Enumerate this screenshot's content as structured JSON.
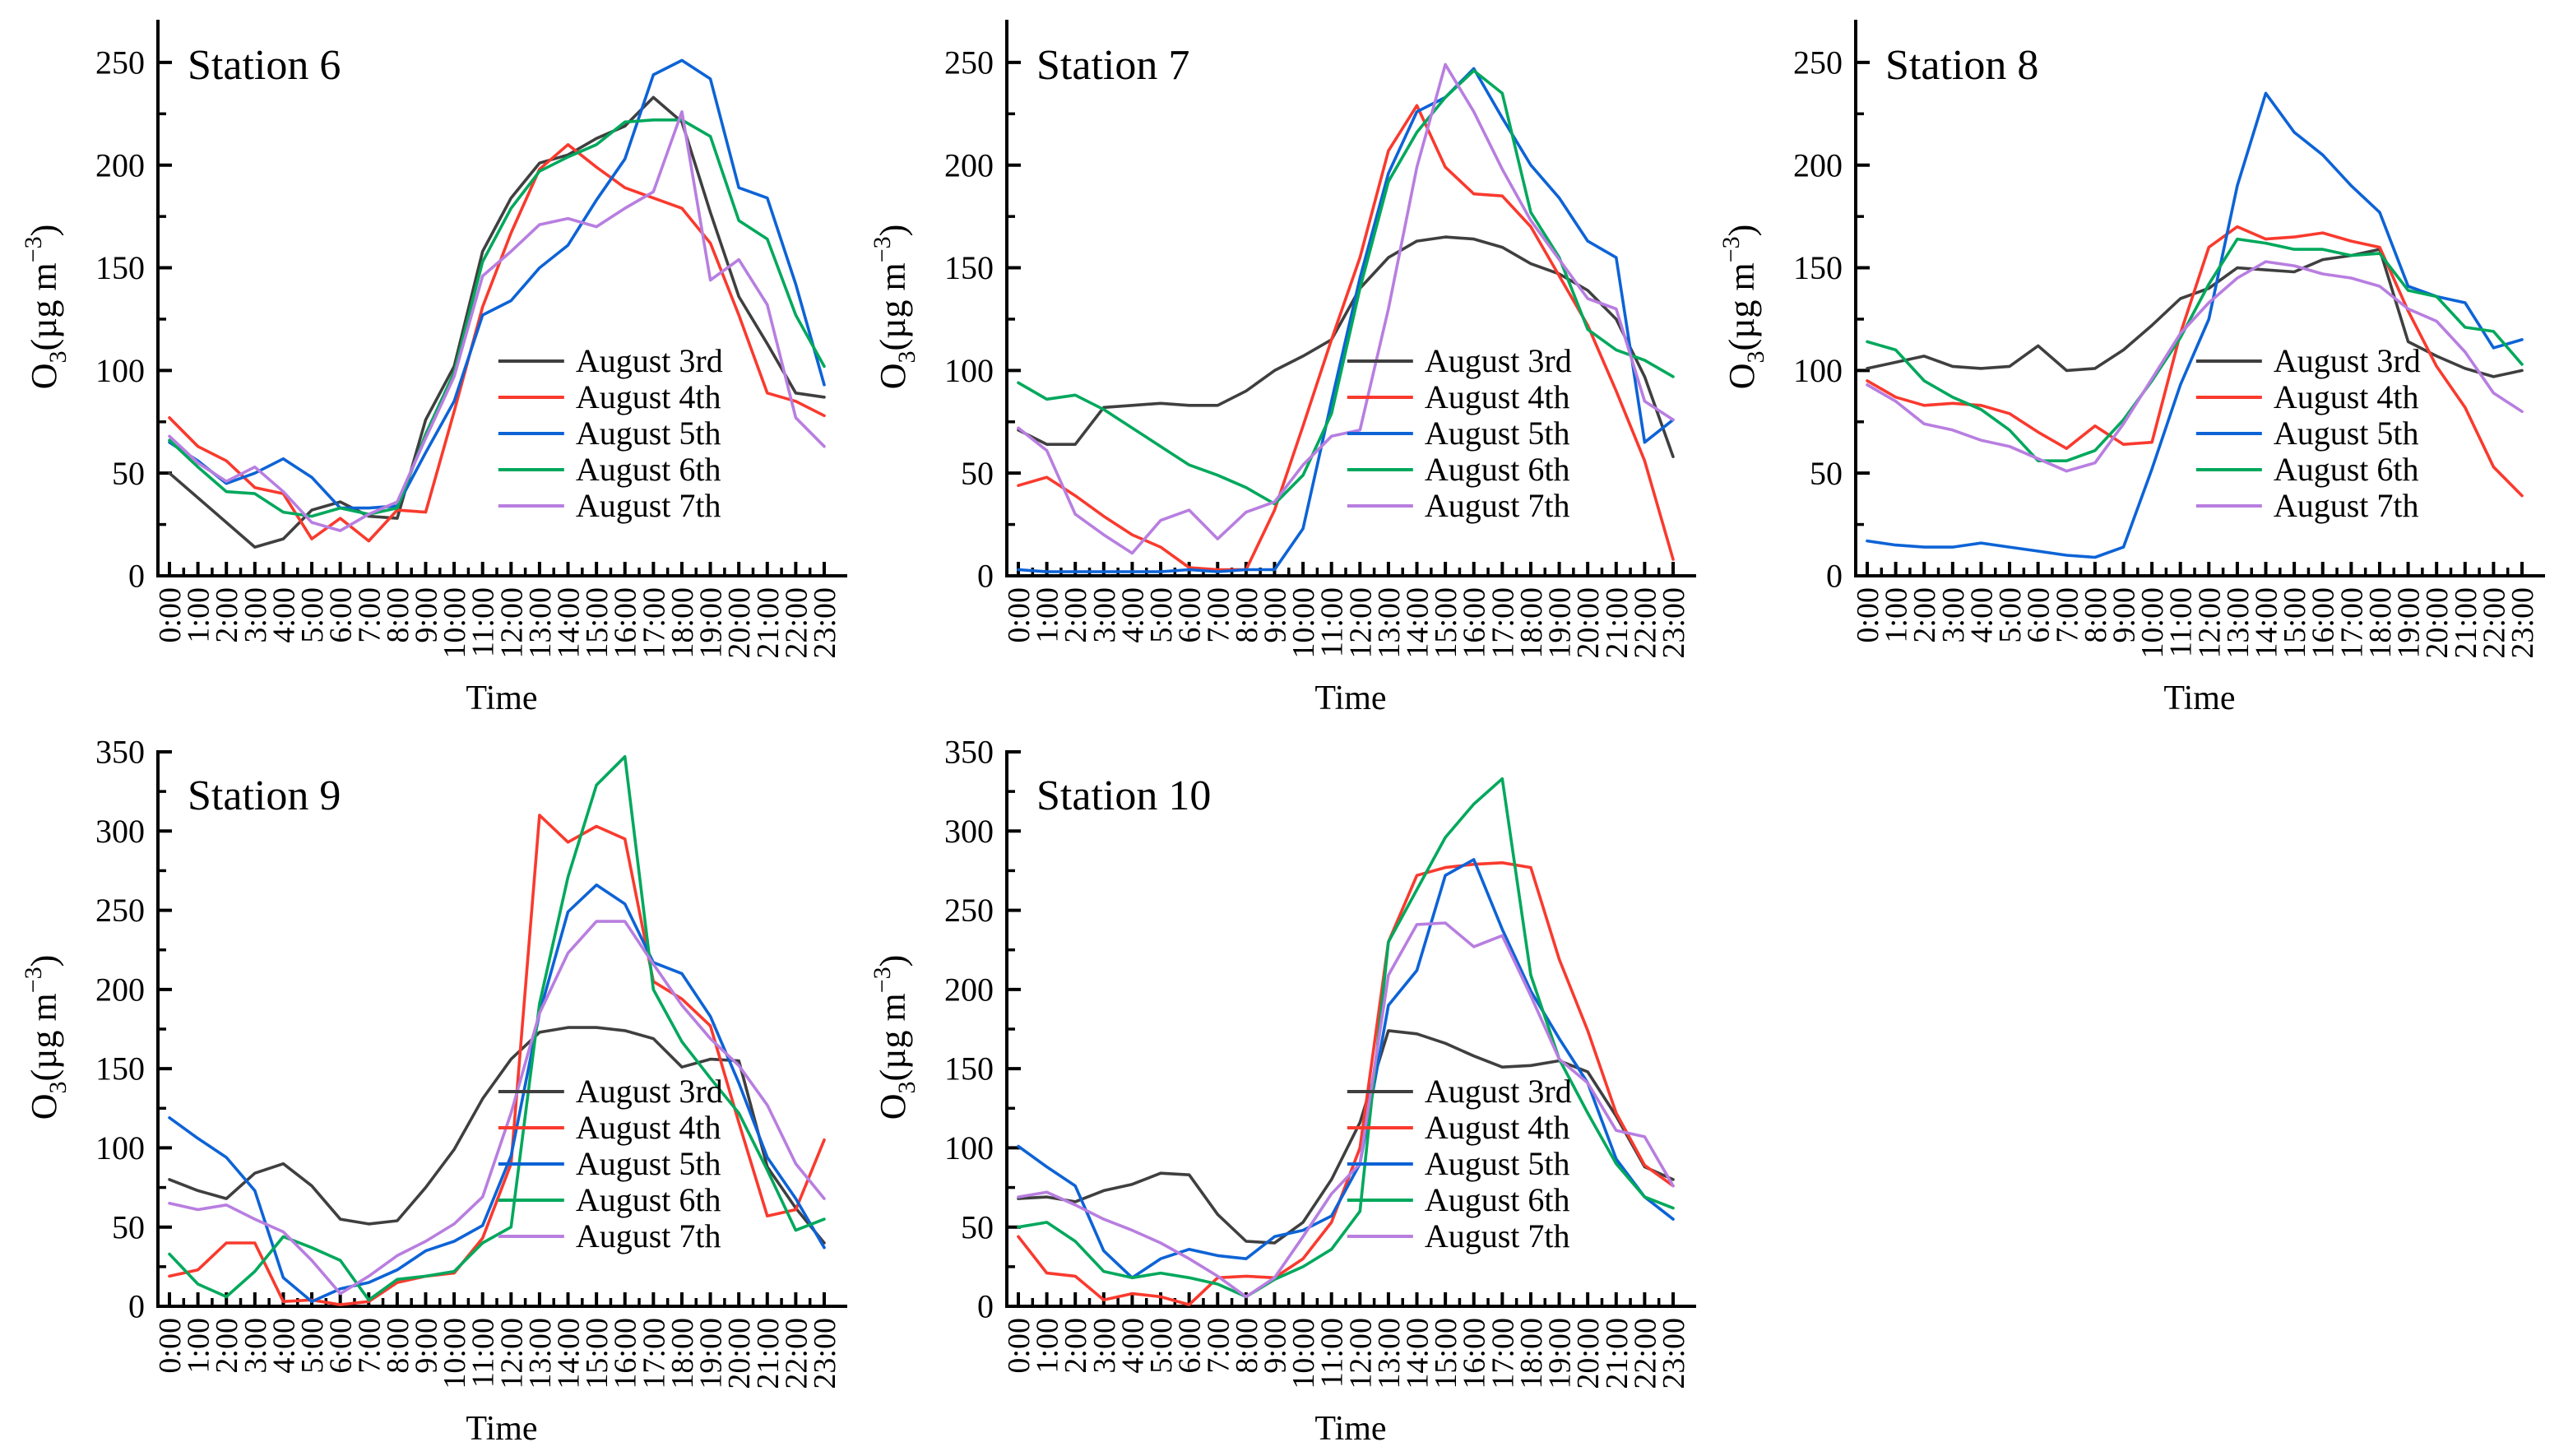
{
  "figure": {
    "xlabel": "Time",
    "ylabel": {
      "base": "O",
      "sub": "3",
      "mid": "(µg m",
      "sup": "−3",
      "end": ")"
    }
  },
  "colors": {
    "axis": "#000000",
    "august_3rd": "#3f3f3f",
    "august_4th": "#f93a2e",
    "august_5th": "#0d63d6",
    "august_6th": "#00a85c",
    "august_7th": "#b87ee0"
  },
  "chart_data": [
    {
      "type": "line",
      "title": "Station 6",
      "xlabel": "Time",
      "ylabel": "O3(µg m-3)",
      "ylim": [
        0,
        270
      ],
      "yticks": [
        0,
        50,
        100,
        150,
        200,
        250
      ],
      "grid": false,
      "legend_position": "inside-center-right",
      "categories": [
        "0:00",
        "1:00",
        "2:00",
        "3:00",
        "4:00",
        "5:00",
        "6:00",
        "7:00",
        "8:00",
        "9:00",
        "10:00",
        "11:00",
        "12:00",
        "13:00",
        "14:00",
        "15:00",
        "16:00",
        "17:00",
        "18:00",
        "19:00",
        "20:00",
        "21:00",
        "22:00",
        "23:00"
      ],
      "series": [
        {
          "name": "August 3rd",
          "color": "august_3rd",
          "values": [
            50,
            38,
            26,
            14,
            18,
            32,
            36,
            29,
            28,
            76,
            102,
            158,
            184,
            201,
            205,
            213,
            219,
            233,
            221,
            177,
            136,
            113,
            89,
            87
          ]
        },
        {
          "name": "August 4th",
          "color": "august_4th",
          "values": [
            77,
            63,
            56,
            43,
            40,
            18,
            28,
            17,
            32,
            31,
            80,
            131,
            167,
            198,
            210,
            199,
            189,
            184,
            179,
            162,
            127,
            89,
            85,
            78
          ]
        },
        {
          "name": "August 5th",
          "color": "august_5th",
          "values": [
            65,
            56,
            45,
            50,
            57,
            48,
            33,
            33,
            34,
            60,
            85,
            127,
            134,
            150,
            161,
            183,
            203,
            244,
            251,
            242,
            189,
            184,
            142,
            93
          ]
        },
        {
          "name": "August 6th",
          "color": "august_6th",
          "values": [
            66,
            53,
            41,
            40,
            31,
            29,
            33,
            30,
            33,
            69,
            99,
            153,
            179,
            197,
            204,
            210,
            221,
            222,
            222,
            214,
            173,
            164,
            127,
            102
          ]
        },
        {
          "name": "August 7th",
          "color": "august_7th",
          "values": [
            68,
            55,
            46,
            53,
            41,
            26,
            22,
            30,
            36,
            67,
            97,
            146,
            158,
            171,
            174,
            170,
            179,
            187,
            226,
            144,
            154,
            132,
            77,
            63
          ]
        }
      ]
    },
    {
      "type": "line",
      "title": "Station 7",
      "xlabel": "Time",
      "ylabel": "O3(µg m-3)",
      "ylim": [
        0,
        270
      ],
      "yticks": [
        0,
        50,
        100,
        150,
        200,
        250
      ],
      "grid": false,
      "legend_position": "inside-center-right",
      "categories": [
        "0:00",
        "1:00",
        "2:00",
        "3:00",
        "4:00",
        "5:00",
        "6:00",
        "7:00",
        "8:00",
        "9:00",
        "10:00",
        "11:00",
        "12:00",
        "13:00",
        "14:00",
        "15:00",
        "16:00",
        "17:00",
        "18:00",
        "19:00",
        "20:00",
        "21:00",
        "22:00",
        "23:00"
      ],
      "series": [
        {
          "name": "August 3rd",
          "color": "august_3rd",
          "values": [
            71,
            64,
            64,
            82,
            83,
            84,
            83,
            83,
            90,
            100,
            107,
            115,
            140,
            155,
            163,
            165,
            164,
            160,
            152,
            147,
            139,
            125,
            97,
            58
          ]
        },
        {
          "name": "August 4th",
          "color": "august_4th",
          "values": [
            44,
            48,
            39,
            29,
            20,
            14,
            4,
            3,
            3,
            32,
            73,
            115,
            155,
            207,
            229,
            199,
            186,
            185,
            170,
            146,
            122,
            90,
            56,
            8
          ]
        },
        {
          "name": "August 5th",
          "color": "august_5th",
          "values": [
            3,
            2,
            2,
            2,
            2,
            2,
            3,
            2,
            3,
            3,
            23,
            85,
            145,
            196,
            226,
            233,
            247,
            223,
            200,
            184,
            163,
            155,
            65,
            76
          ]
        },
        {
          "name": "August 6th",
          "color": "august_6th",
          "values": [
            94,
            86,
            88,
            81,
            72,
            63,
            54,
            49,
            43,
            35,
            49,
            79,
            140,
            192,
            216,
            233,
            246,
            235,
            177,
            155,
            120,
            110,
            105,
            97
          ]
        },
        {
          "name": "August 7th",
          "color": "august_7th",
          "values": [
            72,
            61,
            30,
            20,
            11,
            27,
            32,
            18,
            31,
            36,
            54,
            68,
            71,
            130,
            199,
            249,
            226,
            198,
            173,
            154,
            135,
            130,
            85,
            76
          ]
        }
      ]
    },
    {
      "type": "line",
      "title": "Station 8",
      "xlabel": "Time",
      "ylabel": "O3(µg m-3)",
      "ylim": [
        0,
        270
      ],
      "yticks": [
        0,
        50,
        100,
        150,
        200,
        250
      ],
      "grid": false,
      "legend_position": "inside-center-right",
      "categories": [
        "0:00",
        "1:00",
        "2:00",
        "3:00",
        "4:00",
        "5:00",
        "6:00",
        "7:00",
        "8:00",
        "9:00",
        "10:00",
        "11:00",
        "12:00",
        "13:00",
        "14:00",
        "15:00",
        "16:00",
        "17:00",
        "18:00",
        "19:00",
        "20:00",
        "21:00",
        "22:00",
        "23:00"
      ],
      "series": [
        {
          "name": "August 3rd",
          "color": "august_3rd",
          "values": [
            101,
            104,
            107,
            102,
            101,
            102,
            112,
            100,
            101,
            110,
            122,
            135,
            140,
            150,
            149,
            148,
            154,
            156,
            159,
            114,
            107,
            101,
            97,
            100
          ]
        },
        {
          "name": "August 4th",
          "color": "august_4th",
          "values": [
            95,
            87,
            83,
            84,
            83,
            79,
            70,
            62,
            73,
            64,
            65,
            118,
            160,
            170,
            164,
            165,
            167,
            163,
            160,
            129,
            102,
            82,
            53,
            39
          ]
        },
        {
          "name": "August 5th",
          "color": "august_5th",
          "values": [
            17,
            15,
            14,
            14,
            16,
            14,
            12,
            10,
            9,
            14,
            52,
            93,
            125,
            190,
            235,
            216,
            205,
            190,
            177,
            141,
            136,
            133,
            111,
            115
          ]
        },
        {
          "name": "August 6th",
          "color": "august_6th",
          "values": [
            114,
            110,
            95,
            87,
            81,
            71,
            56,
            56,
            61,
            76,
            95,
            116,
            142,
            164,
            162,
            159,
            159,
            156,
            157,
            139,
            136,
            121,
            119,
            103
          ]
        },
        {
          "name": "August 7th",
          "color": "august_7th",
          "values": [
            93,
            85,
            74,
            71,
            66,
            63,
            57,
            51,
            55,
            74,
            96,
            118,
            133,
            145,
            153,
            151,
            147,
            145,
            141,
            130,
            124,
            109,
            89,
            80
          ]
        }
      ]
    },
    {
      "type": "line",
      "title": "Station 9",
      "xlabel": "Time",
      "ylabel": "O3(µg m-3)",
      "ylim": [
        0,
        350
      ],
      "yticks": [
        0,
        50,
        100,
        150,
        200,
        250,
        300,
        350
      ],
      "grid": false,
      "legend_position": "inside-center-right",
      "categories": [
        "0:00",
        "1:00",
        "2:00",
        "3:00",
        "4:00",
        "5:00",
        "6:00",
        "7:00",
        "8:00",
        "9:00",
        "10:00",
        "11:00",
        "12:00",
        "13:00",
        "14:00",
        "15:00",
        "16:00",
        "17:00",
        "18:00",
        "19:00",
        "20:00",
        "21:00",
        "22:00",
        "23:00"
      ],
      "series": [
        {
          "name": "August 3rd",
          "color": "august_3rd",
          "values": [
            80,
            73,
            68,
            84,
            90,
            76,
            55,
            52,
            54,
            75,
            99,
            131,
            156,
            173,
            176,
            176,
            174,
            169,
            151,
            156,
            155,
            88,
            62,
            40
          ]
        },
        {
          "name": "August 4th",
          "color": "august_4th",
          "values": [
            19,
            23,
            40,
            40,
            3,
            4,
            1,
            3,
            15,
            19,
            21,
            43,
            90,
            310,
            293,
            303,
            295,
            205,
            194,
            177,
            116,
            57,
            61,
            105
          ]
        },
        {
          "name": "August 5th",
          "color": "august_5th",
          "values": [
            119,
            106,
            94,
            73,
            18,
            3,
            11,
            15,
            23,
            35,
            41,
            51,
            95,
            185,
            249,
            266,
            254,
            217,
            210,
            183,
            141,
            94,
            68,
            37
          ]
        },
        {
          "name": "August 6th",
          "color": "august_6th",
          "values": [
            33,
            14,
            6,
            22,
            44,
            37,
            29,
            4,
            17,
            19,
            22,
            40,
            50,
            191,
            271,
            329,
            347,
            200,
            167,
            144,
            122,
            86,
            48,
            55
          ]
        },
        {
          "name": "August 7th",
          "color": "august_7th",
          "values": [
            65,
            61,
            64,
            55,
            47,
            29,
            8,
            19,
            32,
            41,
            52,
            69,
            122,
            185,
            223,
            243,
            243,
            216,
            190,
            169,
            152,
            127,
            90,
            68
          ]
        }
      ]
    },
    {
      "type": "line",
      "title": "Station 10",
      "xlabel": "Time",
      "ylabel": "O3(µg m-3)",
      "ylim": [
        0,
        350
      ],
      "yticks": [
        0,
        50,
        100,
        150,
        200,
        250,
        300,
        350
      ],
      "grid": false,
      "legend_position": "inside-center-right",
      "categories": [
        "0:00",
        "1:00",
        "2:00",
        "3:00",
        "4:00",
        "5:00",
        "6:00",
        "7:00",
        "8:00",
        "9:00",
        "10:00",
        "11:00",
        "12:00",
        "13:00",
        "14:00",
        "15:00",
        "16:00",
        "17:00",
        "18:00",
        "19:00",
        "20:00",
        "21:00",
        "22:00",
        "23:00"
      ],
      "series": [
        {
          "name": "August 3rd",
          "color": "august_3rd",
          "values": [
            68,
            69,
            66,
            73,
            77,
            84,
            83,
            58,
            41,
            40,
            53,
            80,
            116,
            174,
            172,
            166,
            158,
            151,
            152,
            155,
            148,
            120,
            88,
            80
          ]
        },
        {
          "name": "August 4th",
          "color": "august_4th",
          "values": [
            44,
            21,
            19,
            4,
            8,
            6,
            1,
            18,
            19,
            18,
            30,
            53,
            100,
            230,
            272,
            277,
            279,
            280,
            277,
            219,
            174,
            122,
            89,
            76
          ]
        },
        {
          "name": "August 5th",
          "color": "august_5th",
          "values": [
            101,
            88,
            76,
            35,
            18,
            30,
            36,
            32,
            30,
            44,
            48,
            57,
            90,
            190,
            212,
            272,
            282,
            238,
            199,
            169,
            141,
            93,
            69,
            55
          ]
        },
        {
          "name": "August 6th",
          "color": "august_6th",
          "values": [
            50,
            53,
            41,
            22,
            18,
            21,
            18,
            14,
            6,
            17,
            25,
            36,
            60,
            230,
            263,
            296,
            317,
            333,
            209,
            156,
            122,
            90,
            69,
            62
          ]
        },
        {
          "name": "August 7th",
          "color": "august_7th",
          "values": [
            69,
            72,
            64,
            55,
            48,
            40,
            30,
            19,
            6,
            18,
            44,
            71,
            90,
            209,
            241,
            242,
            227,
            234,
            196,
            156,
            141,
            111,
            107,
            76
          ]
        }
      ]
    }
  ]
}
